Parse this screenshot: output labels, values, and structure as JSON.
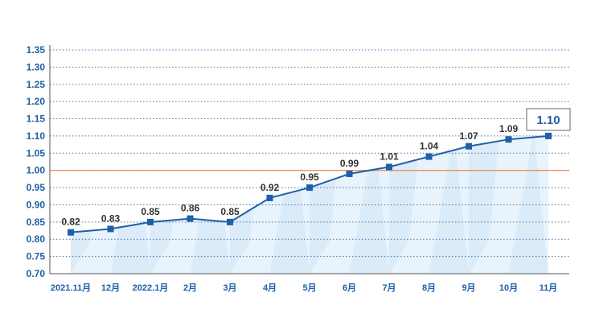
{
  "chart_data": {
    "type": "line",
    "categories": [
      "2021.11月",
      "12月",
      "2022.1月",
      "2月",
      "3月",
      "4月",
      "5月",
      "6月",
      "7月",
      "8月",
      "9月",
      "10月",
      "11月"
    ],
    "values": [
      0.82,
      0.83,
      0.85,
      0.86,
      0.85,
      0.92,
      0.95,
      0.99,
      1.01,
      1.04,
      1.07,
      1.09,
      1.1
    ],
    "value_labels": [
      "0.82",
      "0.83",
      "0.85",
      "0.86",
      "0.85",
      "0.92",
      "0.95",
      "0.99",
      "1.01",
      "1.04",
      "1.07",
      "1.09",
      "1.10"
    ],
    "y_ticks": [
      "0.70",
      "0.75",
      "0.80",
      "0.85",
      "0.90",
      "0.95",
      "1.00",
      "1.05",
      "1.10",
      "1.15",
      "1.20",
      "1.25",
      "1.30",
      "1.35"
    ],
    "ylim": [
      0.7,
      1.35
    ],
    "reference_line": 1.0,
    "highlight_index": 12,
    "grid": true,
    "title": "",
    "xlabel": "",
    "ylabel": "",
    "colors": {
      "line": "#1f5fa8",
      "marker": "#1f5fa8",
      "reference": "#e8874a",
      "grid": "#1f5fa8",
      "area_light": "#e9f3fb",
      "area_dark": "#cfe3f5",
      "highlight_border": "#999999"
    }
  }
}
